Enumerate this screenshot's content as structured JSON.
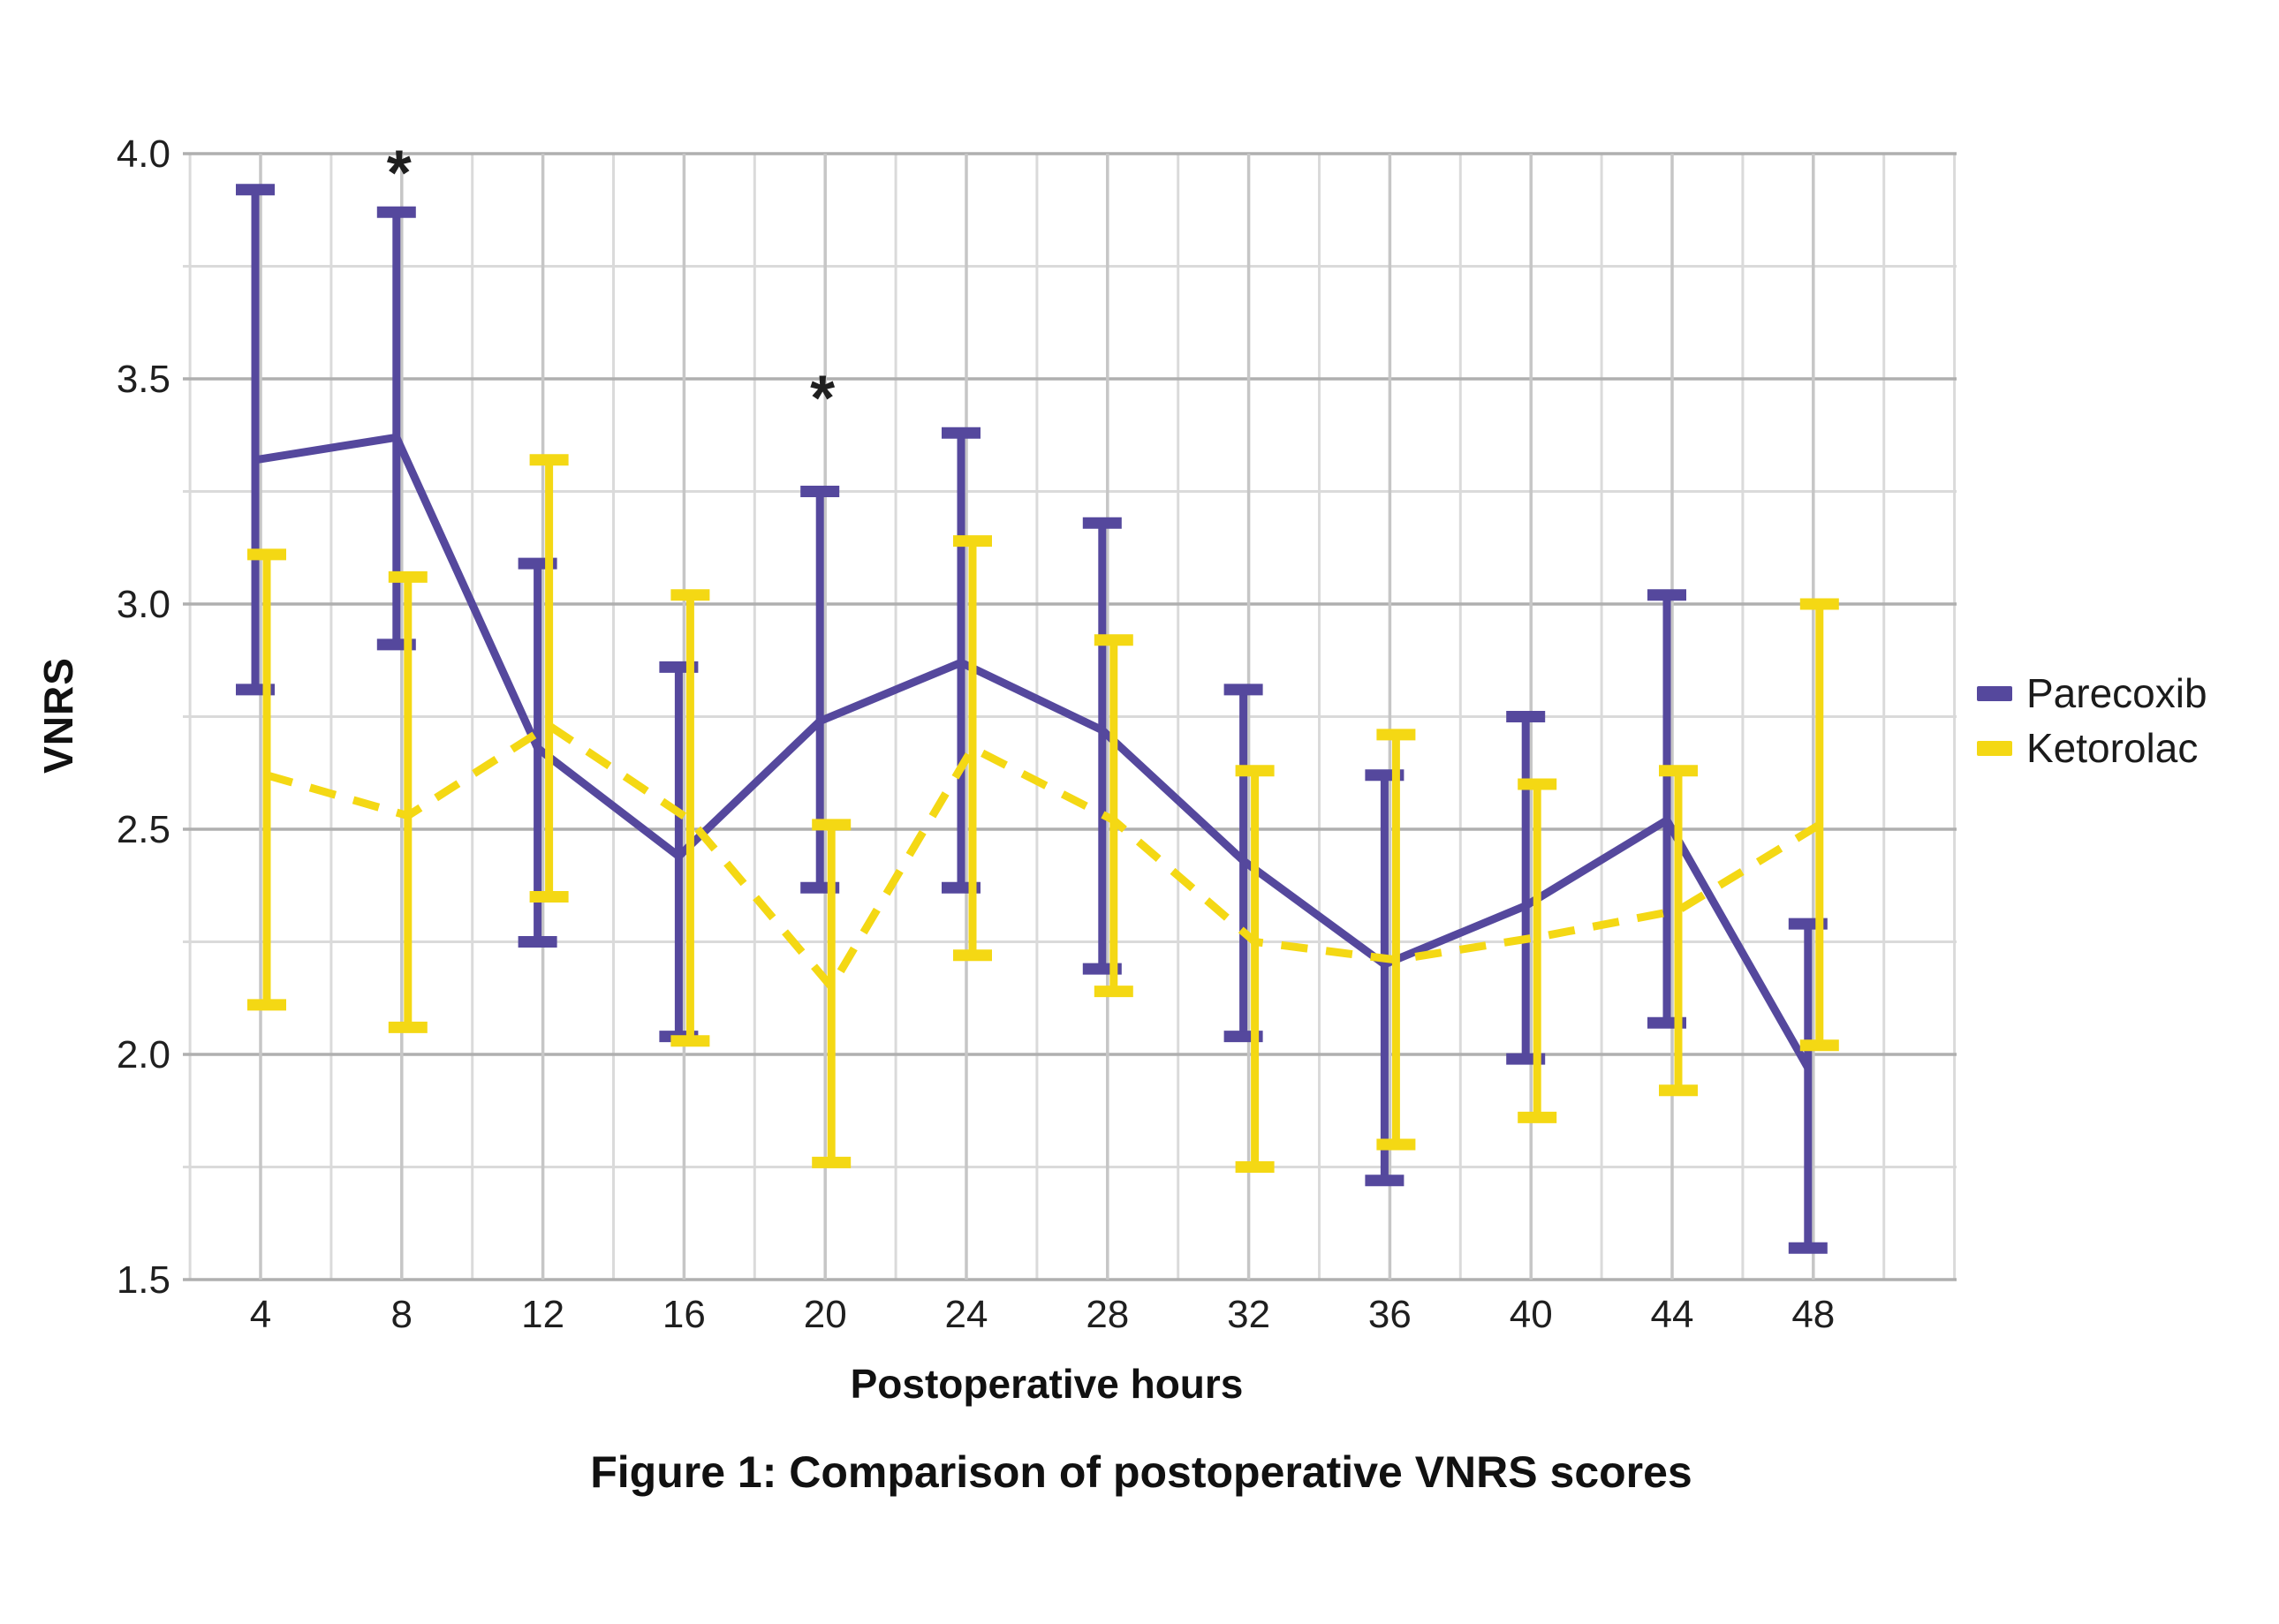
{
  "labels": {
    "y_axis_title": "VNRS",
    "x_axis_title": "Postoperative hours",
    "caption": "Figure 1: Comparison of postoperative VNRS scores"
  },
  "legend": {
    "position": "right",
    "items": [
      {
        "label": "Parecoxib",
        "color": "#55489D",
        "style": "solid"
      },
      {
        "label": "Ketorolac",
        "color": "#F4D814",
        "style": "dashed"
      }
    ]
  },
  "colors": {
    "parecoxib": "#55489D",
    "ketorolac": "#F4D814",
    "grid_major": "#afafaf",
    "grid_minor": "#dadada",
    "text": "#1f1f1f",
    "annotation": "#111111",
    "background": "#ffffff"
  },
  "chart_data": {
    "type": "line",
    "title": "Figure 1: Comparison of postoperative VNRS scores",
    "xlabel": "Postoperative hours",
    "ylabel": "VNRS",
    "x": [
      4,
      8,
      12,
      16,
      20,
      24,
      28,
      32,
      36,
      40,
      44,
      48
    ],
    "xticks": [
      "4",
      "8",
      "12",
      "16",
      "20",
      "24",
      "28",
      "32",
      "36",
      "40",
      "44",
      "48"
    ],
    "yticks": [
      "4.0",
      "3.5",
      "3.0",
      "2.5",
      "2.0",
      "1.5"
    ],
    "ylim": [
      1.5,
      4.0
    ],
    "ytick_step": 0.5,
    "grid": true,
    "grid_minor_step": 0.25,
    "legend_position": "right",
    "error_bars": true,
    "series": [
      {
        "name": "Parecoxib",
        "color": "#55489D",
        "line_style": "solid",
        "means": [
          3.32,
          3.37,
          2.68,
          2.44,
          2.74,
          2.87,
          2.72,
          2.43,
          2.2,
          2.33,
          2.52,
          1.97
        ],
        "lower": [
          2.81,
          2.91,
          2.25,
          2.04,
          2.37,
          2.37,
          2.19,
          2.04,
          1.72,
          1.99,
          2.07,
          1.57
        ],
        "upper": [
          3.92,
          3.87,
          3.09,
          2.86,
          3.25,
          3.38,
          3.18,
          2.81,
          2.62,
          2.75,
          3.02,
          2.29
        ]
      },
      {
        "name": "Ketorolac",
        "color": "#F4D814",
        "line_style": "dashed",
        "means": [
          2.62,
          2.53,
          2.73,
          2.52,
          2.15,
          2.68,
          2.52,
          2.25,
          2.21,
          2.26,
          2.32,
          2.51
        ],
        "lower": [
          2.11,
          2.06,
          2.35,
          2.03,
          1.76,
          2.22,
          2.14,
          1.75,
          1.8,
          1.86,
          1.92,
          2.02
        ],
        "upper": [
          3.11,
          3.06,
          3.32,
          3.02,
          2.51,
          3.14,
          2.92,
          2.63,
          2.71,
          2.6,
          2.63,
          3.0
        ]
      }
    ],
    "annotations": [
      {
        "symbol": "*",
        "x": 8,
        "value": 3.96,
        "meaning": "significant difference at 8 h"
      },
      {
        "symbol": "*",
        "x": 20,
        "value": 3.46,
        "meaning": "significant difference at 20 h"
      }
    ]
  }
}
